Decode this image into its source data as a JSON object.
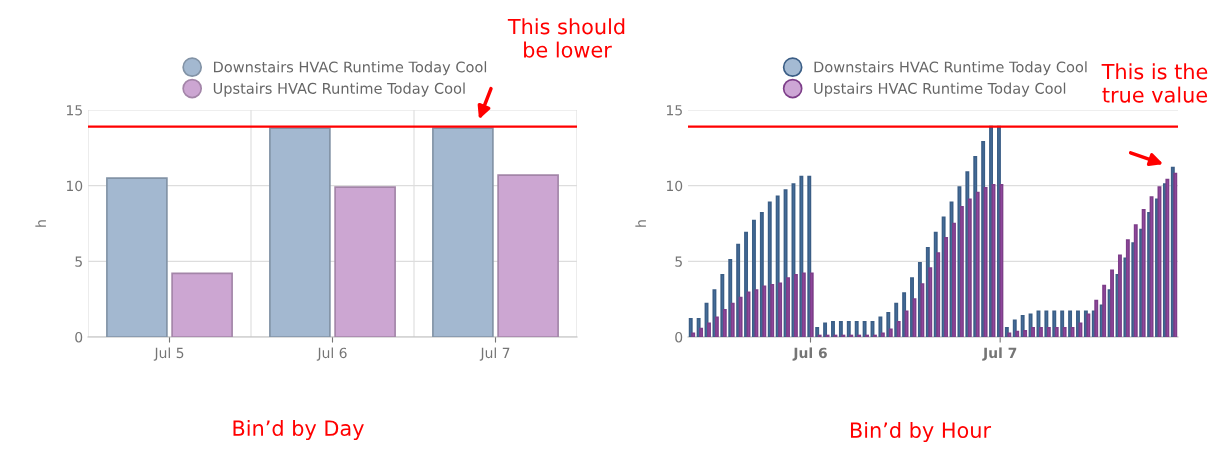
{
  "chart_data": [
    {
      "type": "bar",
      "categories": [
        "Jul 5",
        "Jul 6",
        "Jul 7"
      ],
      "ylabel": "h",
      "ylim": [
        0,
        15
      ],
      "yticks": [
        0,
        5,
        10,
        15
      ],
      "grid": true,
      "legend": "top",
      "marker": "circle",
      "series": [
        {
          "name": "Downstairs HVAC Runtime Today Cool",
          "color": "#a3b8d0",
          "values": [
            10.5,
            13.8,
            13.8
          ]
        },
        {
          "name": "Upstairs HVAC Runtime Today Cool",
          "color": "#cca6d2",
          "values": [
            4.2,
            9.9,
            10.7
          ]
        }
      ],
      "ref_lines": [
        {
          "axis": "y",
          "value": 13.9,
          "color": "#ff0000"
        }
      ],
      "annotations": [
        "This should\nbe lower",
        "Bin’d by Day"
      ]
    },
    {
      "type": "bar",
      "categories": [
        null,
        null,
        null,
        null,
        null,
        null,
        null,
        null,
        null,
        null,
        null,
        null,
        null,
        null,
        null,
        "Jul 6",
        null,
        null,
        null,
        null,
        null,
        null,
        null,
        null,
        null,
        null,
        null,
        null,
        null,
        null,
        null,
        null,
        null,
        null,
        null,
        null,
        null,
        null,
        null,
        "Jul 7",
        null,
        null,
        null,
        null,
        null,
        null,
        null,
        null,
        null,
        null,
        null,
        null,
        null,
        null,
        null,
        null,
        null,
        null,
        null,
        null,
        null,
        null
      ],
      "ylabel": "h",
      "ylim": [
        0,
        15
      ],
      "yticks": [
        0,
        5,
        10,
        15
      ],
      "grid": "y",
      "legend": "top",
      "marker": "circle",
      "series": [
        {
          "name": "Downstairs HVAC Runtime Today Cool",
          "color": "#4a76a8",
          "values": [
            1.2,
            1.2,
            2.2,
            3.1,
            4.1,
            5.1,
            6.1,
            6.9,
            7.7,
            8.2,
            8.9,
            9.3,
            9.7,
            10.1,
            10.6,
            10.6,
            0.6,
            0.9,
            1.0,
            1.0,
            1.0,
            1.0,
            1.0,
            1.0,
            1.3,
            1.6,
            2.2,
            2.9,
            3.9,
            4.9,
            5.9,
            6.9,
            7.9,
            8.9,
            9.9,
            10.9,
            11.9,
            12.9,
            13.9,
            13.9,
            0.6,
            1.1,
            1.4,
            1.5,
            1.7,
            1.7,
            1.7,
            1.7,
            1.7,
            1.7,
            1.7,
            1.7,
            2.1,
            3.1,
            4.1,
            5.2,
            6.2,
            7.1,
            8.2,
            9.1,
            10.1,
            11.2
          ]
        },
        {
          "name": "Upstairs HVAC Runtime Today Cool",
          "color": "#9c4dab",
          "values": [
            0.25,
            0.55,
            0.9,
            1.3,
            1.8,
            2.2,
            2.6,
            2.95,
            3.1,
            3.35,
            3.45,
            3.55,
            3.9,
            4.1,
            4.2,
            4.2,
            0.1,
            0.1,
            0.1,
            0.1,
            0.1,
            0.1,
            0.1,
            0.1,
            0.25,
            0.5,
            1.0,
            1.7,
            2.5,
            3.5,
            4.55,
            5.55,
            6.55,
            7.5,
            8.6,
            9.1,
            9.55,
            9.85,
            10.05,
            10.05,
            0.25,
            0.35,
            0.4,
            0.6,
            0.6,
            0.6,
            0.6,
            0.6,
            0.6,
            0.9,
            1.5,
            2.4,
            3.4,
            4.4,
            5.4,
            6.4,
            7.4,
            8.4,
            9.25,
            9.9,
            10.4,
            10.8
          ]
        }
      ],
      "ref_lines": [
        {
          "axis": "y",
          "value": 13.9,
          "color": "#ff0000"
        }
      ],
      "annotations": [
        "This is the\ntrue value",
        "Bin’d by Hour"
      ]
    }
  ]
}
